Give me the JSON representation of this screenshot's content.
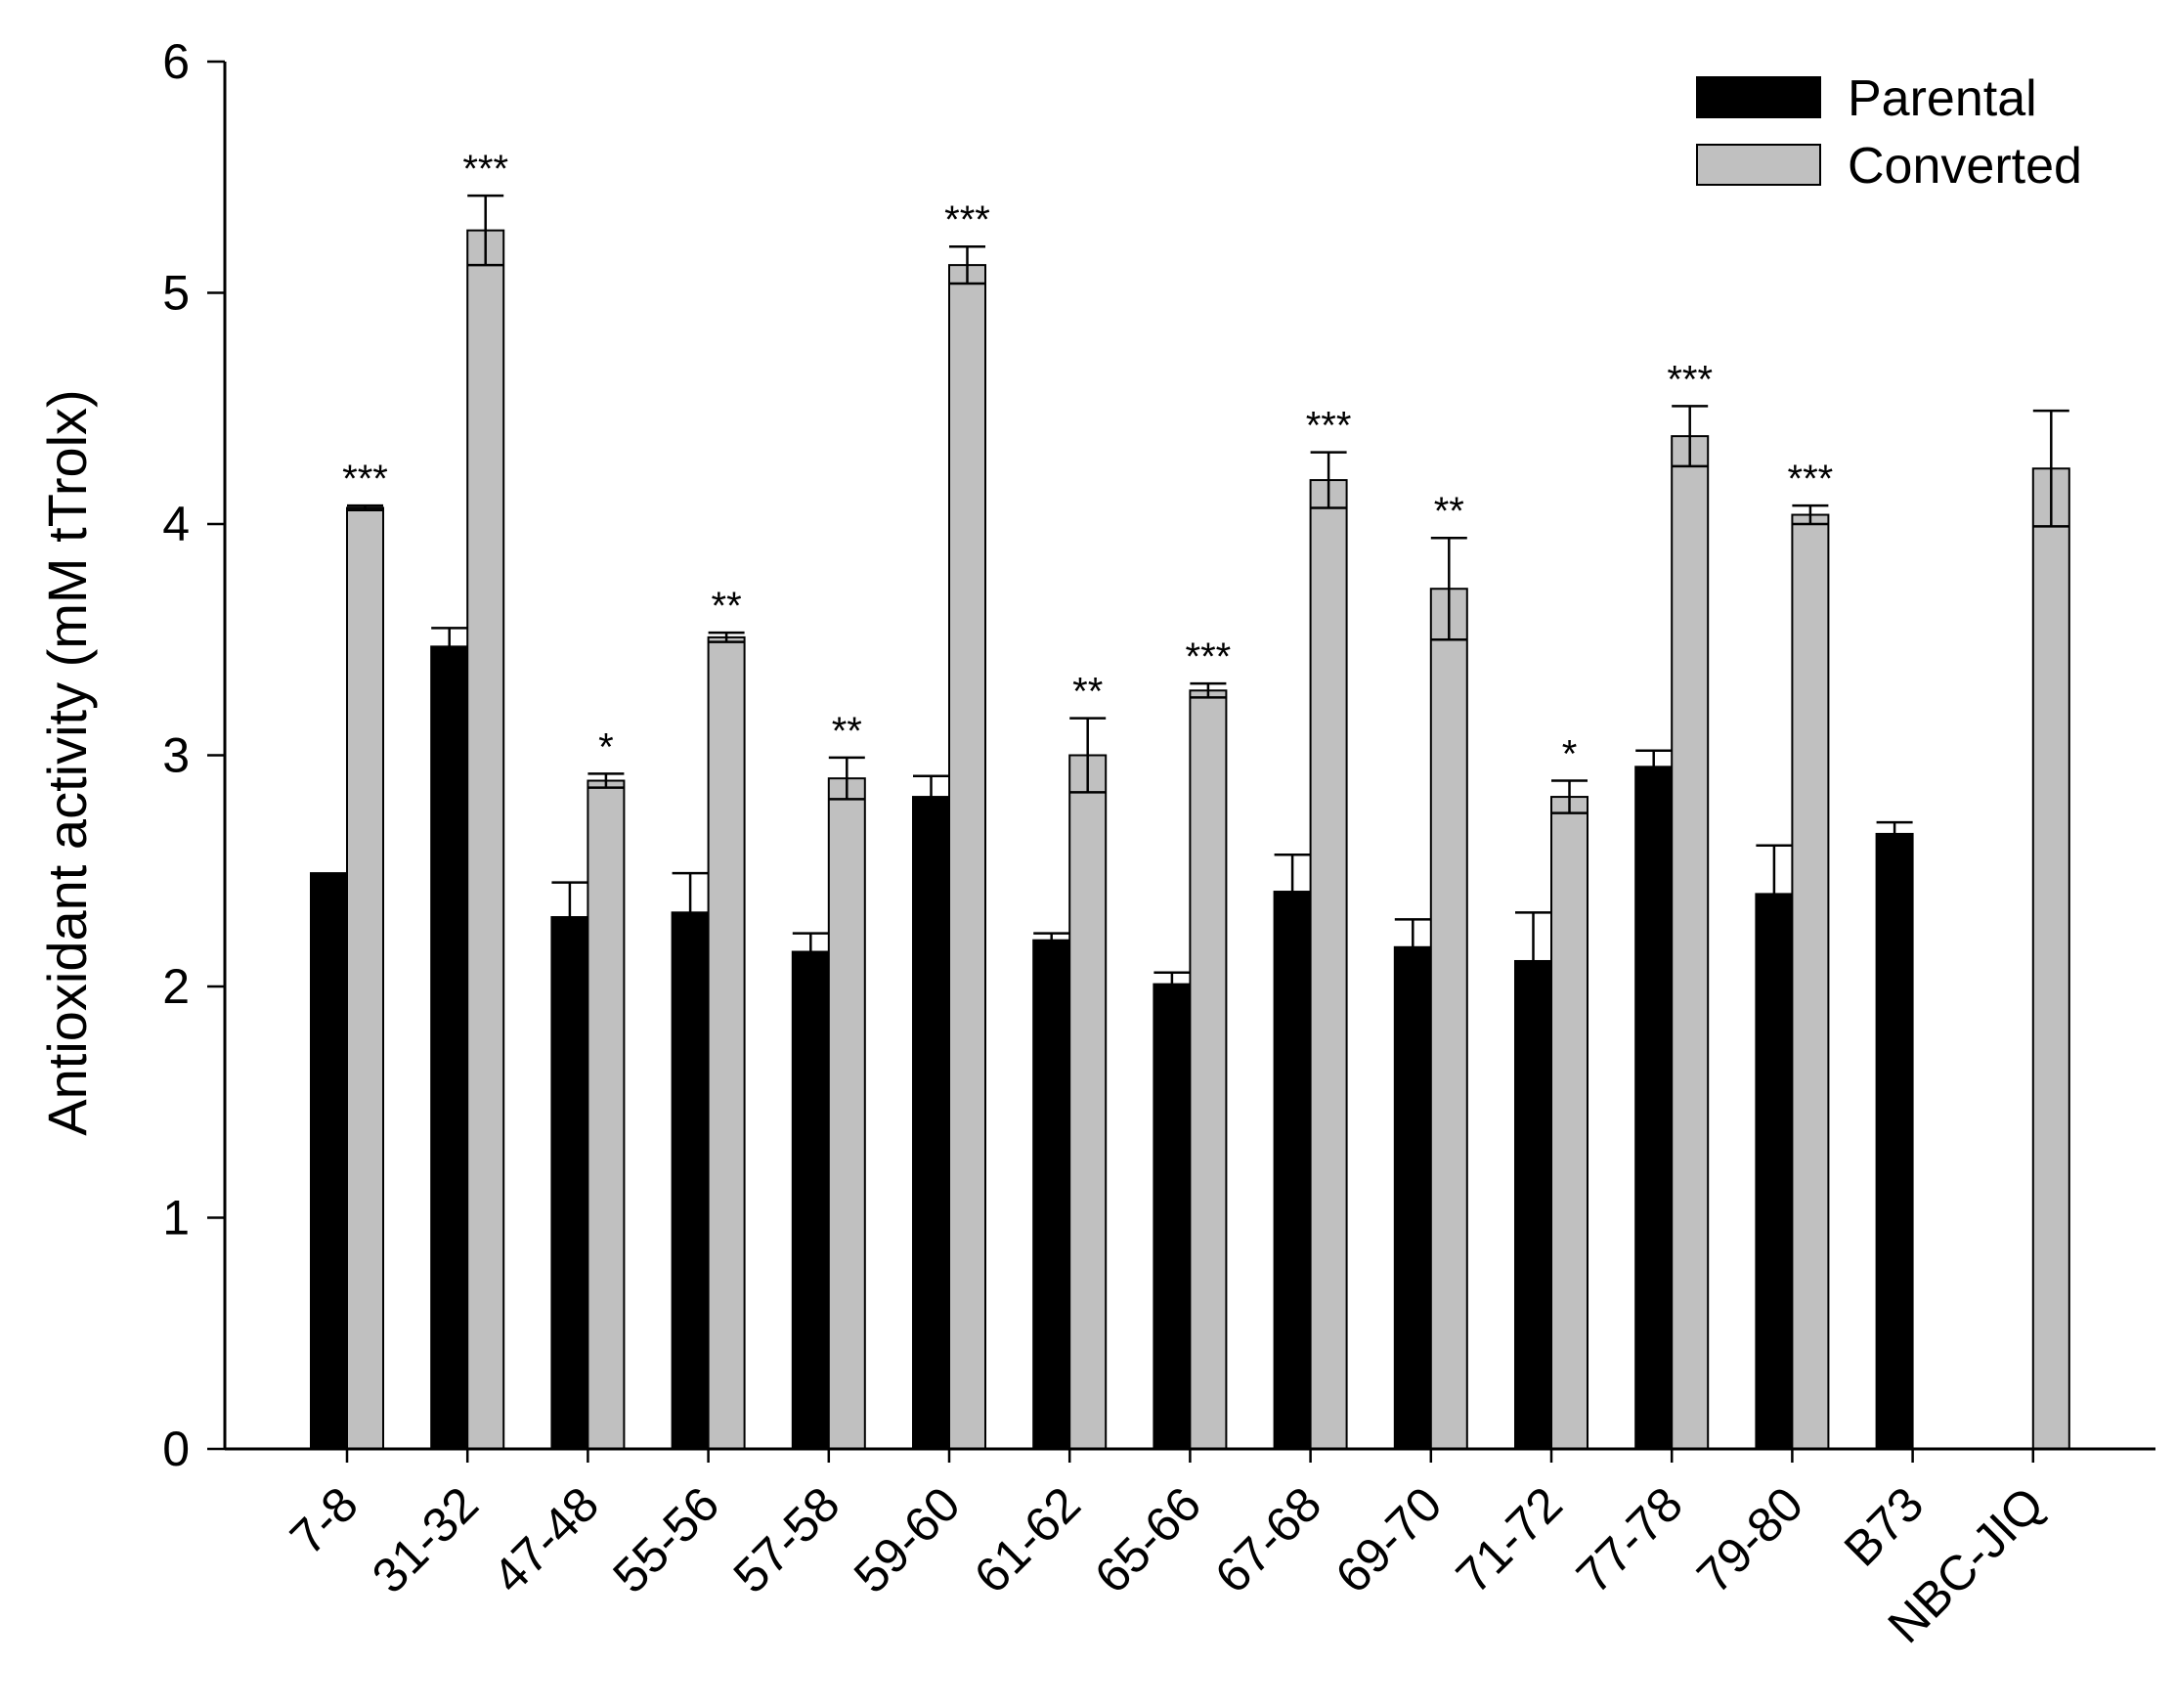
{
  "chart_data": {
    "type": "bar",
    "ylabel": "Antioxidant activity (mM tTrolx)",
    "xlabel": "",
    "ylim": [
      0,
      6
    ],
    "yticks": [
      0,
      1,
      2,
      3,
      4,
      5,
      6
    ],
    "legend_position": "top-right",
    "grid": false,
    "categories": [
      "7-8",
      "31-32",
      "47-48",
      "55-56",
      "57-58",
      "59-60",
      "61-62",
      "65-66",
      "67-68",
      "69-70",
      "71-72",
      "77-78",
      "79-80",
      "B73",
      "NBC-JIQ"
    ],
    "series": [
      {
        "name": "Parental",
        "color": "#000000",
        "values": [
          2.49,
          3.47,
          2.3,
          2.32,
          2.15,
          2.82,
          2.2,
          2.01,
          2.41,
          2.17,
          2.11,
          2.95,
          2.4,
          2.66,
          null
        ],
        "errors": [
          0.0,
          0.08,
          0.15,
          0.17,
          0.08,
          0.09,
          0.03,
          0.05,
          0.16,
          0.12,
          0.21,
          0.07,
          0.21,
          0.05,
          null
        ]
      },
      {
        "name": "Converted",
        "color": "#c0c0c0",
        "values": [
          4.07,
          5.27,
          2.89,
          3.51,
          2.9,
          5.12,
          3.0,
          3.28,
          4.19,
          3.72,
          2.82,
          4.38,
          4.04,
          null,
          4.24
        ],
        "errors": [
          0.01,
          0.15,
          0.03,
          0.02,
          0.09,
          0.08,
          0.16,
          0.03,
          0.12,
          0.22,
          0.07,
          0.13,
          0.04,
          null,
          0.25
        ]
      }
    ],
    "significance": [
      "***",
      "***",
      "*",
      "**",
      "**",
      "***",
      "**",
      "***",
      "***",
      "**",
      "*",
      "***",
      "***",
      "",
      ""
    ]
  }
}
